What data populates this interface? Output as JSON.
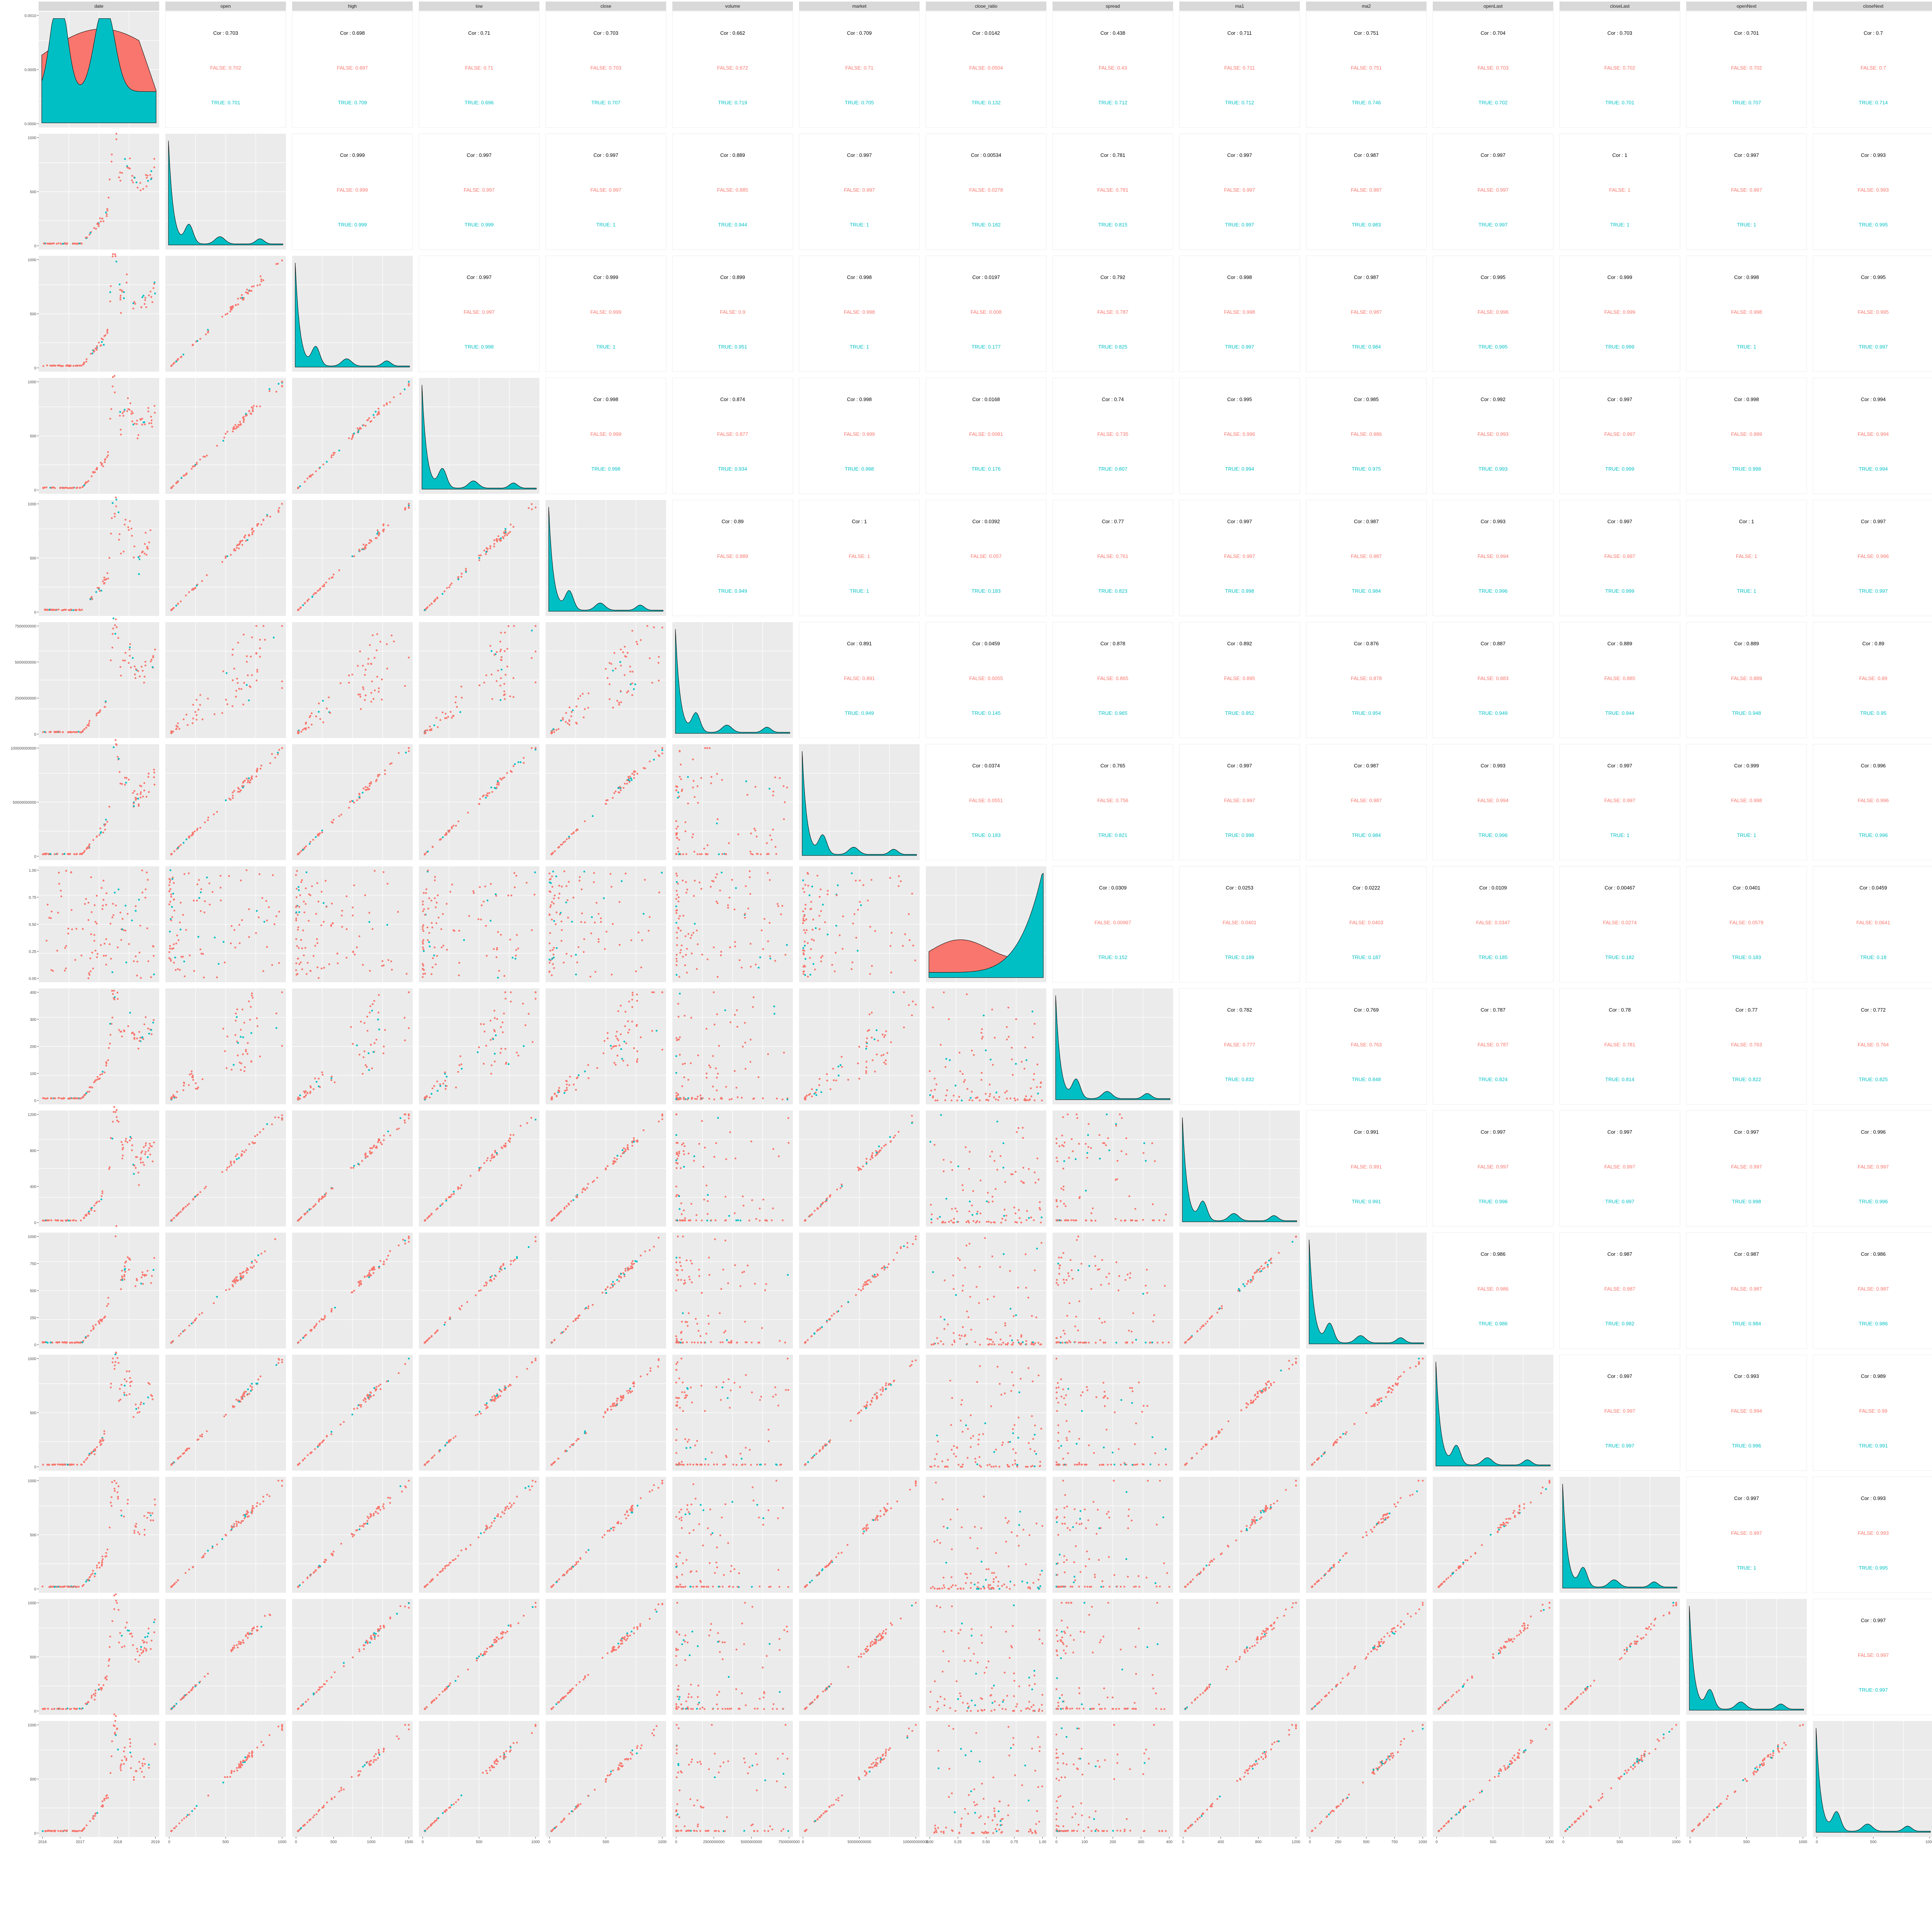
{
  "chart_data": {
    "type": "scatter-matrix",
    "variables": [
      "date",
      "open",
      "high",
      "low",
      "close",
      "volume",
      "market",
      "close_ratio",
      "spread",
      "ma1",
      "ma2",
      "openLast",
      "closeLast",
      "openNext",
      "closeNext"
    ],
    "groups": [
      {
        "name": "FALSE",
        "color": "#F8766D"
      },
      {
        "name": "TRUE",
        "color": "#00BFC4"
      }
    ],
    "cor_prefix": "Cor : ",
    "cor_colors": {
      "overall": "#000000"
    },
    "panel_bg": "#EBEBEB",
    "strip_bg": "#D9D9D9",
    "correlations": [
      {
        "row": 0,
        "col": 1,
        "cor": "0.703",
        "false": "0.702",
        "true": "0.701"
      },
      {
        "row": 0,
        "col": 2,
        "cor": "0.698",
        "false": "0.697",
        "true": "0.709"
      },
      {
        "row": 0,
        "col": 3,
        "cor": "0.71",
        "false": "0.71",
        "true": "0.696"
      },
      {
        "row": 0,
        "col": 4,
        "cor": "0.703",
        "false": "0.703",
        "true": "0.707"
      },
      {
        "row": 0,
        "col": 5,
        "cor": "0.662",
        "false": "0.672",
        "true": "0.719"
      },
      {
        "row": 0,
        "col": 6,
        "cor": "0.709",
        "false": "0.71",
        "true": "0.705"
      },
      {
        "row": 0,
        "col": 7,
        "cor": "0.0142",
        "false": "0.0504",
        "true": "0.132"
      },
      {
        "row": 0,
        "col": 8,
        "cor": "0.438",
        "false": "0.43",
        "true": "0.712"
      },
      {
        "row": 0,
        "col": 9,
        "cor": "0.711",
        "false": "0.711",
        "true": "0.712"
      },
      {
        "row": 0,
        "col": 10,
        "cor": "0.751",
        "false": "0.751",
        "true": "0.746"
      },
      {
        "row": 0,
        "col": 11,
        "cor": "0.704",
        "false": "0.703",
        "true": "0.702"
      },
      {
        "row": 0,
        "col": 12,
        "cor": "0.703",
        "false": "0.702",
        "true": "0.701"
      },
      {
        "row": 0,
        "col": 13,
        "cor": "0.701",
        "false": "0.702",
        "true": "0.707"
      },
      {
        "row": 0,
        "col": 14,
        "cor": "0.7",
        "false": "0.7",
        "true": "0.714"
      },
      {
        "row": 1,
        "col": 2,
        "cor": "0.999",
        "false": "0.999",
        "true": "0.999"
      },
      {
        "row": 1,
        "col": 3,
        "cor": "0.997",
        "false": "0.997",
        "true": "0.999"
      },
      {
        "row": 1,
        "col": 4,
        "cor": "0.997",
        "false": "0.997",
        "true": "1"
      },
      {
        "row": 1,
        "col": 5,
        "cor": "0.889",
        "false": "0.885",
        "true": "0.944"
      },
      {
        "row": 1,
        "col": 6,
        "cor": "0.997",
        "false": "0.997",
        "true": "1"
      },
      {
        "row": 1,
        "col": 7,
        "cor": "0.00534",
        "false": "0.0278",
        "true": "0.182"
      },
      {
        "row": 1,
        "col": 8,
        "cor": "0.781",
        "false": "0.781",
        "true": "0.815"
      },
      {
        "row": 1,
        "col": 9,
        "cor": "0.997",
        "false": "0.997",
        "true": "0.997"
      },
      {
        "row": 1,
        "col": 10,
        "cor": "0.987",
        "false": "0.987",
        "true": "0.983"
      },
      {
        "row": 1,
        "col": 11,
        "cor": "0.997",
        "false": "0.997",
        "true": "0.997"
      },
      {
        "row": 1,
        "col": 12,
        "cor": "1",
        "false": "1",
        "true": "1"
      },
      {
        "row": 1,
        "col": 13,
        "cor": "0.997",
        "false": "0.997",
        "true": "1"
      },
      {
        "row": 1,
        "col": 14,
        "cor": "0.993",
        "false": "0.993",
        "true": "0.995"
      },
      {
        "row": 2,
        "col": 3,
        "cor": "0.997",
        "false": "0.997",
        "true": "0.998"
      },
      {
        "row": 2,
        "col": 4,
        "cor": "0.999",
        "false": "0.999",
        "true": "1"
      },
      {
        "row": 2,
        "col": 5,
        "cor": "0.899",
        "false": "0.9",
        "true": "0.951"
      },
      {
        "row": 2,
        "col": 6,
        "cor": "0.998",
        "false": "0.998",
        "true": "1"
      },
      {
        "row": 2,
        "col": 7,
        "cor": "0.0197",
        "false": "0.008",
        "true": "0.177"
      },
      {
        "row": 2,
        "col": 8,
        "cor": "0.792",
        "false": "0.787",
        "true": "0.825"
      },
      {
        "row": 2,
        "col": 9,
        "cor": "0.998",
        "false": "0.998",
        "true": "0.997"
      },
      {
        "row": 2,
        "col": 10,
        "cor": "0.987",
        "false": "0.987",
        "true": "0.984"
      },
      {
        "row": 2,
        "col": 11,
        "cor": "0.995",
        "false": "0.996",
        "true": "0.995"
      },
      {
        "row": 2,
        "col": 12,
        "cor": "0.999",
        "false": "0.999",
        "true": "0.999"
      },
      {
        "row": 2,
        "col": 13,
        "cor": "0.998",
        "false": "0.998",
        "true": "1"
      },
      {
        "row": 2,
        "col": 14,
        "cor": "0.995",
        "false": "0.995",
        "true": "0.997"
      },
      {
        "row": 3,
        "col": 4,
        "cor": "0.998",
        "false": "0.999",
        "true": "0.998"
      },
      {
        "row": 3,
        "col": 5,
        "cor": "0.874",
        "false": "0.877",
        "true": "0.934"
      },
      {
        "row": 3,
        "col": 6,
        "cor": "0.998",
        "false": "0.999",
        "true": "0.998"
      },
      {
        "row": 3,
        "col": 7,
        "cor": "0.0168",
        "false": "0.0081",
        "true": "0.176"
      },
      {
        "row": 3,
        "col": 8,
        "cor": "0.74",
        "false": "0.735",
        "true": "0.807"
      },
      {
        "row": 3,
        "col": 9,
        "cor": "0.995",
        "false": "0.996",
        "true": "0.994"
      },
      {
        "row": 3,
        "col": 10,
        "cor": "0.985",
        "false": "0.986",
        "true": "0.975"
      },
      {
        "row": 3,
        "col": 11,
        "cor": "0.992",
        "false": "0.993",
        "true": "0.993"
      },
      {
        "row": 3,
        "col": 12,
        "cor": "0.997",
        "false": "0.997",
        "true": "0.999"
      },
      {
        "row": 3,
        "col": 13,
        "cor": "0.998",
        "false": "0.999",
        "true": "0.998"
      },
      {
        "row": 3,
        "col": 14,
        "cor": "0.994",
        "false": "0.994",
        "true": "0.994"
      },
      {
        "row": 4,
        "col": 5,
        "cor": "0.89",
        "false": "0.889",
        "true": "0.949"
      },
      {
        "row": 4,
        "col": 6,
        "cor": "1",
        "false": "1",
        "true": "1"
      },
      {
        "row": 4,
        "col": 7,
        "cor": "0.0392",
        "false": "0.057",
        "true": "0.183"
      },
      {
        "row": 4,
        "col": 8,
        "cor": "0.77",
        "false": "0.761",
        "true": "0.823"
      },
      {
        "row": 4,
        "col": 9,
        "cor": "0.997",
        "false": "0.997",
        "true": "0.998"
      },
      {
        "row": 4,
        "col": 10,
        "cor": "0.987",
        "false": "0.987",
        "true": "0.984"
      },
      {
        "row": 4,
        "col": 11,
        "cor": "0.993",
        "false": "0.994",
        "true": "0.996"
      },
      {
        "row": 4,
        "col": 12,
        "cor": "0.997",
        "false": "0.997",
        "true": "0.999"
      },
      {
        "row": 4,
        "col": 13,
        "cor": "1",
        "false": "1",
        "true": "1"
      },
      {
        "row": 4,
        "col": 14,
        "cor": "0.997",
        "false": "0.996",
        "true": "0.997"
      },
      {
        "row": 5,
        "col": 6,
        "cor": "0.891",
        "false": "0.891",
        "true": "0.949"
      },
      {
        "row": 5,
        "col": 7,
        "cor": "0.0459",
        "false": "0.0055",
        "true": "0.145"
      },
      {
        "row": 5,
        "col": 8,
        "cor": "0.878",
        "false": "0.865",
        "true": "0.965"
      },
      {
        "row": 5,
        "col": 9,
        "cor": "0.892",
        "false": "0.895",
        "true": "0.952"
      },
      {
        "row": 5,
        "col": 10,
        "cor": "0.876",
        "false": "0.878",
        "true": "0.954"
      },
      {
        "row": 5,
        "col": 11,
        "cor": "0.887",
        "false": "0.883",
        "true": "0.949"
      },
      {
        "row": 5,
        "col": 12,
        "cor": "0.889",
        "false": "0.885",
        "true": "0.944"
      },
      {
        "row": 5,
        "col": 13,
        "cor": "0.889",
        "false": "0.889",
        "true": "0.948"
      },
      {
        "row": 5,
        "col": 14,
        "cor": "0.89",
        "false": "0.89",
        "true": "0.95"
      },
      {
        "row": 6,
        "col": 7,
        "cor": "0.0374",
        "false": "0.0551",
        "true": "0.183"
      },
      {
        "row": 6,
        "col": 8,
        "cor": "0.765",
        "false": "0.756",
        "true": "0.821"
      },
      {
        "row": 6,
        "col": 9,
        "cor": "0.997",
        "false": "0.997",
        "true": "0.998"
      },
      {
        "row": 6,
        "col": 10,
        "cor": "0.987",
        "false": "0.987",
        "true": "0.984"
      },
      {
        "row": 6,
        "col": 11,
        "cor": "0.993",
        "false": "0.994",
        "true": "0.996"
      },
      {
        "row": 6,
        "col": 12,
        "cor": "0.997",
        "false": "0.997",
        "true": "1"
      },
      {
        "row": 6,
        "col": 13,
        "cor": "0.999",
        "false": "0.998",
        "true": "1"
      },
      {
        "row": 6,
        "col": 14,
        "cor": "0.996",
        "false": "0.996",
        "true": "0.996"
      },
      {
        "row": 7,
        "col": 8,
        "cor": "0.0309",
        "false": "0.00967",
        "true": "0.152"
      },
      {
        "row": 7,
        "col": 9,
        "cor": "0.0253",
        "false": "0.0401",
        "true": "0.189"
      },
      {
        "row": 7,
        "col": 10,
        "cor": "0.0222",
        "false": "0.0403",
        "true": "0.187"
      },
      {
        "row": 7,
        "col": 11,
        "cor": "0.0109",
        "false": "0.0347",
        "true": "0.185"
      },
      {
        "row": 7,
        "col": 12,
        "cor": "0.00467",
        "false": "0.0274",
        "true": "0.182"
      },
      {
        "row": 7,
        "col": 13,
        "cor": "0.0401",
        "false": "0.0579",
        "true": "0.183"
      },
      {
        "row": 7,
        "col": 14,
        "cor": "0.0459",
        "false": "0.0641",
        "true": "0.18"
      },
      {
        "row": 8,
        "col": 9,
        "cor": "0.782",
        "false": "0.777",
        "true": "0.832"
      },
      {
        "row": 8,
        "col": 10,
        "cor": "0.769",
        "false": "0.763",
        "true": "0.848"
      },
      {
        "row": 8,
        "col": 11,
        "cor": "0.787",
        "false": "0.787",
        "true": "0.824"
      },
      {
        "row": 8,
        "col": 12,
        "cor": "0.78",
        "false": "0.781",
        "true": "0.814"
      },
      {
        "row": 8,
        "col": 13,
        "cor": "0.77",
        "false": "0.763",
        "true": "0.822"
      },
      {
        "row": 8,
        "col": 14,
        "cor": "0.772",
        "false": "0.764",
        "true": "0.825"
      },
      {
        "row": 9,
        "col": 10,
        "cor": "0.991",
        "false": "0.991",
        "true": "0.991"
      },
      {
        "row": 9,
        "col": 11,
        "cor": "0.997",
        "false": "0.997",
        "true": "0.996"
      },
      {
        "row": 9,
        "col": 12,
        "cor": "0.997",
        "false": "0.997",
        "true": "0.997"
      },
      {
        "row": 9,
        "col": 13,
        "cor": "0.997",
        "false": "0.997",
        "true": "0.998"
      },
      {
        "row": 9,
        "col": 14,
        "cor": "0.996",
        "false": "0.997",
        "true": "0.996"
      },
      {
        "row": 10,
        "col": 11,
        "cor": "0.986",
        "false": "0.986",
        "true": "0.986"
      },
      {
        "row": 10,
        "col": 12,
        "cor": "0.987",
        "false": "0.987",
        "true": "0.982"
      },
      {
        "row": 10,
        "col": 13,
        "cor": "0.987",
        "false": "0.987",
        "true": "0.984"
      },
      {
        "row": 10,
        "col": 14,
        "cor": "0.986",
        "false": "0.987",
        "true": "0.986"
      },
      {
        "row": 11,
        "col": 12,
        "cor": "0.997",
        "false": "0.997",
        "true": "0.997"
      },
      {
        "row": 11,
        "col": 13,
        "cor": "0.993",
        "false": "0.994",
        "true": "0.996"
      },
      {
        "row": 11,
        "col": 14,
        "cor": "0.989",
        "false": "0.99",
        "true": "0.991"
      },
      {
        "row": 12,
        "col": 13,
        "cor": "0.997",
        "false": "0.997",
        "true": "1"
      },
      {
        "row": 12,
        "col": 14,
        "cor": "0.993",
        "false": "0.993",
        "true": "0.995"
      },
      {
        "row": 13,
        "col": 14,
        "cor": "0.997",
        "false": "0.997",
        "true": "0.997"
      }
    ],
    "y_ticks": [
      [
        "0.0000",
        "0.0005",
        "0.0010"
      ],
      [
        "0",
        "500",
        "1000"
      ],
      [
        "0",
        "500",
        "1000"
      ],
      [
        "0",
        "500",
        "1000"
      ],
      [
        "0",
        "500",
        "1000"
      ],
      [
        "0",
        "2500000000",
        "5000000000",
        "7500000000"
      ],
      [
        "0",
        "50000000000",
        "100000000000"
      ],
      [
        "0.00",
        "0.25",
        "0.50",
        "0.75",
        "1.00"
      ],
      [
        "0",
        "100",
        "200",
        "300",
        "400"
      ],
      [
        "0",
        "400",
        "800",
        "1200"
      ],
      [
        "0",
        "250",
        "500",
        "750",
        "1000"
      ],
      [
        "0",
        "500",
        "1000"
      ],
      [
        "0",
        "500",
        "1000"
      ],
      [
        "0",
        "500",
        "1000"
      ],
      [
        "0",
        "500",
        "1000"
      ]
    ],
    "x_ticks": [
      [
        "2016",
        "2017",
        "2018",
        "2019"
      ],
      [
        "0",
        "500",
        "1000"
      ],
      [
        "0",
        "500",
        "1000",
        "1500"
      ],
      [
        "0",
        "500",
        "1000"
      ],
      [
        "0",
        "500",
        "1000"
      ],
      [
        "0",
        "2500000000",
        "5000000000",
        "7500000000"
      ],
      [
        "0",
        "50000000000",
        "100000000000"
      ],
      [
        "0.00",
        "0.25",
        "0.50",
        "0.75",
        "1.00"
      ],
      [
        "0",
        "100",
        "200",
        "300",
        "400"
      ],
      [
        "0",
        "400",
        "800",
        "1200"
      ],
      [
        "0",
        "250",
        "500",
        "750",
        "1000"
      ],
      [
        "0",
        "500",
        "1000"
      ],
      [
        "0",
        "500",
        "1000"
      ],
      [
        "0",
        "500",
        "1000"
      ],
      [
        "0",
        "500",
        "1000"
      ]
    ]
  }
}
